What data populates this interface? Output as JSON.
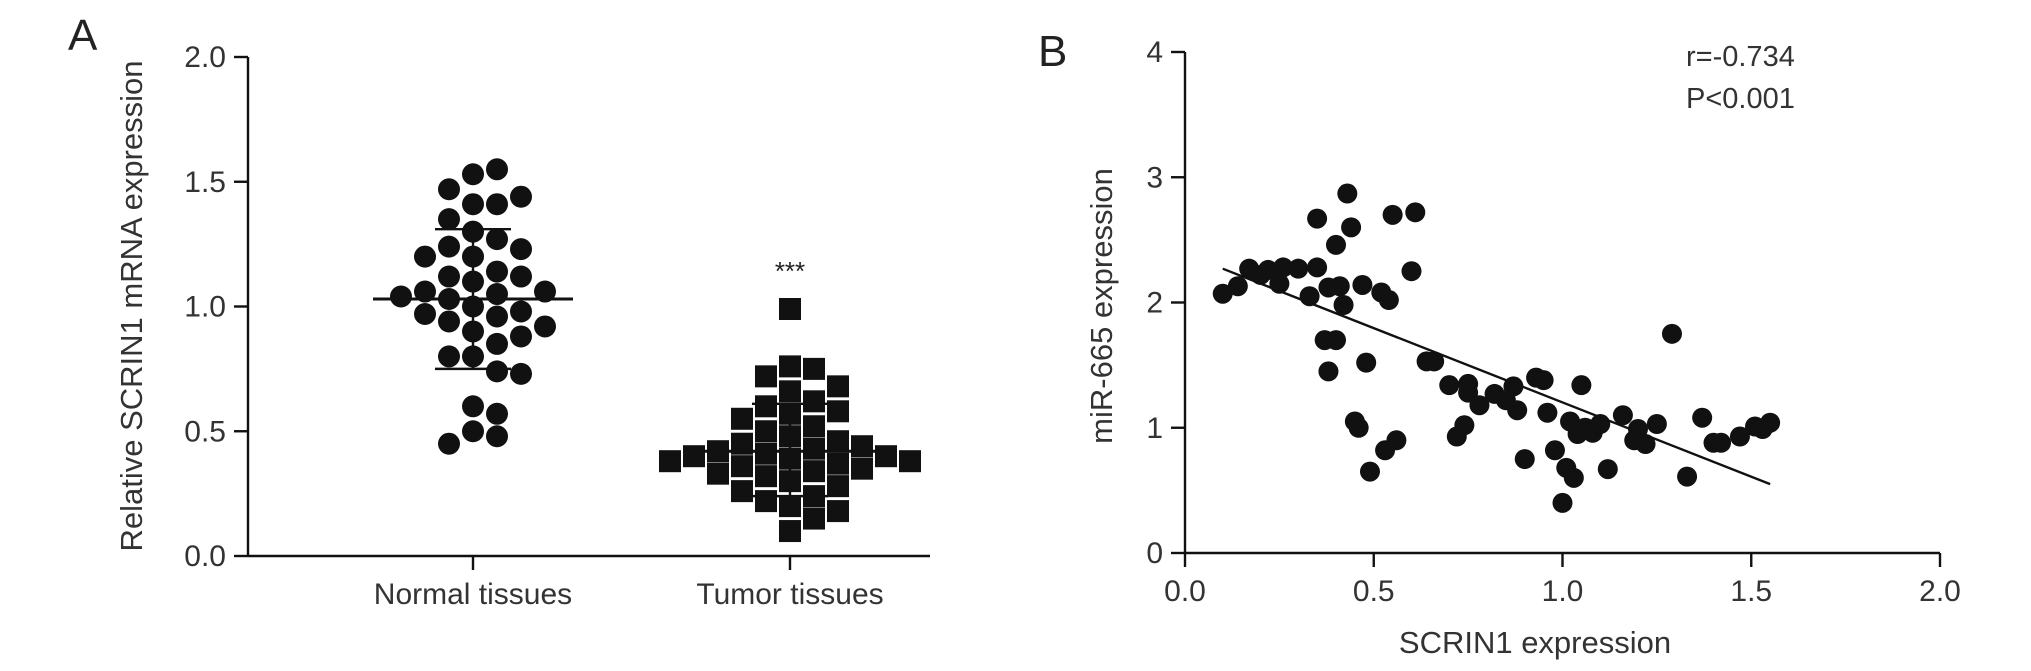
{
  "chart_data": [
    {
      "type": "scatter",
      "panel_label": "A",
      "ylabel": "Relative SCRIN1 mRNA expression",
      "ylim": [
        0.0,
        2.0
      ],
      "yticks": [
        0.0,
        0.5,
        1.0,
        1.5,
        2.0
      ],
      "ytick_labels": [
        "0.0",
        "0.5",
        "1.0",
        "1.5",
        "2.0"
      ],
      "categories": [
        "Normal tissues",
        "Tumor tissues"
      ],
      "significance": "***",
      "grid": false,
      "series": [
        {
          "category": "Normal tissues",
          "marker": "circle",
          "mean": 1.03,
          "sd_low": 0.75,
          "sd_high": 1.31,
          "values": [
            1.53,
            1.55,
            1.47,
            1.41,
            1.41,
            1.44,
            1.35,
            1.3,
            1.27,
            1.24,
            1.23,
            1.2,
            1.2,
            1.14,
            1.12,
            1.12,
            1.1,
            1.06,
            1.06,
            1.05,
            1.04,
            1.03,
            1.0,
            0.98,
            0.97,
            0.96,
            0.94,
            0.92,
            0.9,
            0.88,
            0.85,
            0.8,
            0.8,
            0.74,
            0.73,
            0.6,
            0.57,
            0.5,
            0.48,
            0.45
          ]
        },
        {
          "category": "Tumor tissues",
          "marker": "square",
          "mean": 0.42,
          "sd_low": 0.24,
          "sd_high": 0.61,
          "values": [
            0.99,
            0.76,
            0.75,
            0.72,
            0.68,
            0.66,
            0.62,
            0.6,
            0.58,
            0.57,
            0.55,
            0.52,
            0.5,
            0.48,
            0.46,
            0.45,
            0.44,
            0.43,
            0.42,
            0.41,
            0.4,
            0.4,
            0.39,
            0.38,
            0.38,
            0.37,
            0.36,
            0.35,
            0.34,
            0.33,
            0.32,
            0.3,
            0.28,
            0.26,
            0.24,
            0.22,
            0.2,
            0.18,
            0.15,
            0.1
          ]
        }
      ]
    },
    {
      "type": "scatter",
      "panel_label": "B",
      "xlabel": "SCRIN1 expression",
      "ylabel": "miR-665 expression",
      "xlim": [
        0.0,
        2.0
      ],
      "ylim": [
        0,
        4
      ],
      "xticks": [
        0.0,
        0.5,
        1.0,
        1.5,
        2.0
      ],
      "xtick_labels": [
        "0.0",
        "0.5",
        "1.0",
        "1.5",
        "2.0"
      ],
      "yticks": [
        0,
        1,
        2,
        3,
        4
      ],
      "ytick_labels": [
        "0",
        "1",
        "2",
        "3",
        "4"
      ],
      "annotations": [
        "r=-0.734",
        "P<0.001"
      ],
      "grid": false,
      "fit_line": {
        "x": [
          0.1,
          1.55
        ],
        "y": [
          2.27,
          0.55
        ]
      },
      "points": {
        "x": [
          0.1,
          0.14,
          0.17,
          0.2,
          0.22,
          0.25,
          0.26,
          0.3,
          0.33,
          0.35,
          0.35,
          0.37,
          0.38,
          0.38,
          0.4,
          0.4,
          0.41,
          0.42,
          0.43,
          0.44,
          0.45,
          0.46,
          0.47,
          0.48,
          0.49,
          0.52,
          0.53,
          0.54,
          0.55,
          0.56,
          0.6,
          0.61,
          0.64,
          0.66,
          0.7,
          0.72,
          0.74,
          0.75,
          0.75,
          0.78,
          0.82,
          0.85,
          0.87,
          0.88,
          0.9,
          0.93,
          0.95,
          0.96,
          0.98,
          1.0,
          1.01,
          1.02,
          1.03,
          1.04,
          1.05,
          1.06,
          1.08,
          1.1,
          1.12,
          1.16,
          1.19,
          1.2,
          1.22,
          1.25,
          1.29,
          1.33,
          1.37,
          1.4,
          1.42,
          1.47,
          1.51,
          1.53,
          1.55
        ],
        "y": [
          2.07,
          2.13,
          2.27,
          2.22,
          2.26,
          2.15,
          2.28,
          2.27,
          2.05,
          2.67,
          2.28,
          1.7,
          2.12,
          1.45,
          1.7,
          2.46,
          2.13,
          1.98,
          2.87,
          2.6,
          1.05,
          1.0,
          2.14,
          1.52,
          0.65,
          2.08,
          0.82,
          2.02,
          2.7,
          0.9,
          2.25,
          2.72,
          1.53,
          1.53,
          1.34,
          0.93,
          1.02,
          1.35,
          1.28,
          1.18,
          1.27,
          1.22,
          1.33,
          1.14,
          0.75,
          1.4,
          1.38,
          1.12,
          0.82,
          0.4,
          0.68,
          1.05,
          0.6,
          0.95,
          1.34,
          1.0,
          0.96,
          1.03,
          0.67,
          1.1,
          0.9,
          0.99,
          0.87,
          1.03,
          1.75,
          0.61,
          1.08,
          0.88,
          0.88,
          0.93,
          1.01,
          0.99,
          1.04
        ]
      }
    }
  ]
}
